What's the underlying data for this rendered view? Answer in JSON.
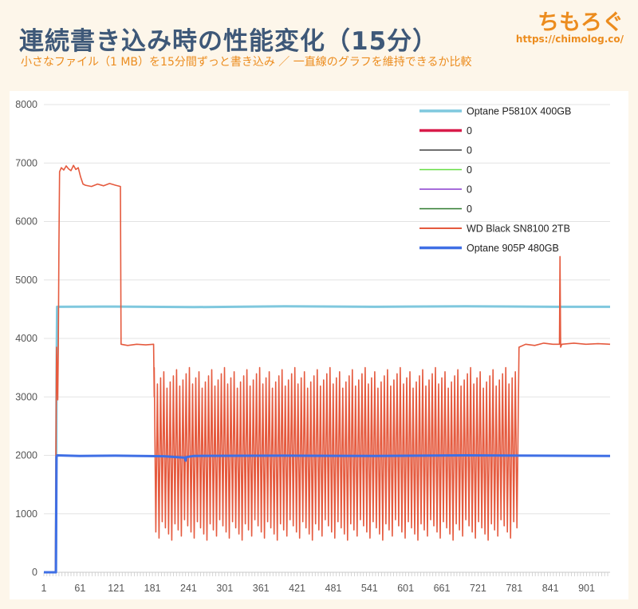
{
  "header": {
    "title": "連続書き込み時の性能変化（15分）",
    "subtitle": "小さなファイル（1 MB）を15分間ずっと書き込み ／ 一直線のグラフを維持できるか比較",
    "brand_name": "ちもろぐ",
    "brand_url": "https://chimolog.co/"
  },
  "colors": {
    "background": "#fdf6ea",
    "title": "#3e5878",
    "accent": "#ec8c1e",
    "plot_bg": "#ffffff",
    "grid": "#e3e3e3"
  },
  "chart_data": {
    "type": "line",
    "title": "連続書き込み時の性能変化（15分）",
    "xlabel": "",
    "ylabel": "",
    "xlim": [
      1,
      940
    ],
    "ylim": [
      0,
      8000
    ],
    "x_ticks": [
      1,
      61,
      121,
      181,
      241,
      301,
      361,
      421,
      481,
      541,
      601,
      661,
      721,
      781,
      841,
      901
    ],
    "y_ticks": [
      0,
      1000,
      2000,
      3000,
      4000,
      5000,
      6000,
      7000,
      8000
    ],
    "grid": true,
    "legend_position": "top-right",
    "series": [
      {
        "name": "Optane P5810X 400GB",
        "color": "#7fc8de",
        "width": 3,
        "points": [
          [
            1,
            0
          ],
          [
            21,
            0
          ],
          [
            22,
            3300
          ],
          [
            23,
            4540
          ],
          [
            120,
            4545
          ],
          [
            250,
            4535
          ],
          [
            400,
            4550
          ],
          [
            550,
            4540
          ],
          [
            700,
            4550
          ],
          [
            850,
            4540
          ],
          [
            940,
            4540
          ]
        ]
      },
      {
        "name": "0",
        "color": "#d81b4a",
        "width": 3,
        "points": []
      },
      {
        "name": "0",
        "color": "#404040",
        "width": 1,
        "points": []
      },
      {
        "name": "0",
        "color": "#66dd44",
        "width": 1,
        "points": []
      },
      {
        "name": "0",
        "color": "#8a3ccf",
        "width": 1,
        "points": []
      },
      {
        "name": "0",
        "color": "#2e7a2e",
        "width": 1,
        "points": []
      },
      {
        "name": "WD Black SN8100 2TB",
        "color": "#e55a3e",
        "width": 1.6,
        "points": [
          [
            1,
            0
          ],
          [
            20,
            0
          ],
          [
            21,
            2000
          ],
          [
            22,
            3850
          ],
          [
            23,
            3400
          ],
          [
            24,
            2950
          ],
          [
            25,
            3800
          ],
          [
            26,
            5600
          ],
          [
            27,
            6850
          ],
          [
            30,
            6920
          ],
          [
            34,
            6880
          ],
          [
            38,
            6950
          ],
          [
            42,
            6900
          ],
          [
            46,
            6870
          ],
          [
            50,
            6960
          ],
          [
            54,
            6890
          ],
          [
            58,
            6920
          ],
          [
            62,
            6760
          ],
          [
            66,
            6640
          ],
          [
            70,
            6620
          ],
          [
            80,
            6600
          ],
          [
            90,
            6640
          ],
          [
            100,
            6610
          ],
          [
            110,
            6650
          ],
          [
            120,
            6620
          ],
          [
            128,
            6600
          ],
          [
            129,
            3900
          ],
          [
            140,
            3880
          ],
          [
            155,
            3900
          ],
          [
            170,
            3890
          ],
          [
            183,
            3900
          ],
          [
            184,
            3000
          ]
        ],
        "oscillation": {
          "x_start": 184,
          "x_end": 788,
          "period": 5.3,
          "low": 700,
          "high": 3500
        },
        "tail": [
          [
            788,
            3000
          ],
          [
            789,
            3850
          ],
          [
            800,
            3900
          ],
          [
            815,
            3880
          ],
          [
            830,
            3920
          ],
          [
            845,
            3900
          ],
          [
            856,
            3900
          ],
          [
            857,
            5400
          ],
          [
            858,
            3850
          ],
          [
            860,
            3900
          ],
          [
            880,
            3920
          ],
          [
            900,
            3900
          ],
          [
            920,
            3910
          ],
          [
            940,
            3900
          ]
        ]
      },
      {
        "name": "Optane 905P 480GB",
        "color": "#3f6fe5",
        "width": 3,
        "points": [
          [
            1,
            0
          ],
          [
            21,
            0
          ],
          [
            22,
            1970
          ],
          [
            23,
            2000
          ],
          [
            60,
            1990
          ],
          [
            120,
            1995
          ],
          [
            200,
            1985
          ],
          [
            235,
            1960
          ],
          [
            236,
            1910
          ],
          [
            237,
            1970
          ],
          [
            250,
            1990
          ],
          [
            400,
            1995
          ],
          [
            550,
            1990
          ],
          [
            700,
            2000
          ],
          [
            820,
            1995
          ],
          [
            940,
            1990
          ]
        ]
      }
    ]
  }
}
